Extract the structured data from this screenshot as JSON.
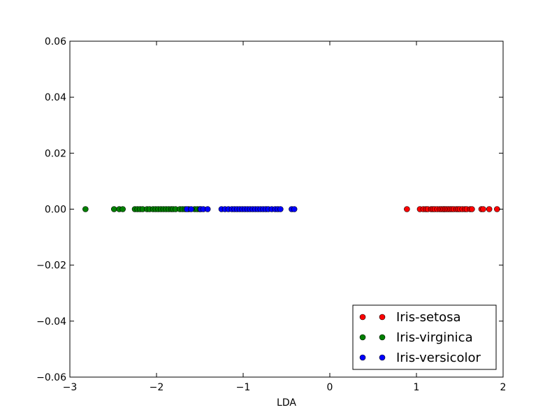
{
  "chart_data": {
    "type": "scatter",
    "title": "",
    "xlabel": "LDA",
    "ylabel": "",
    "xlim": [
      -3,
      2
    ],
    "ylim": [
      -0.06,
      0.06
    ],
    "grid": false,
    "legend_position": "lower-right",
    "x_ticks": [
      {
        "value": -3,
        "label": "−3"
      },
      {
        "value": -2,
        "label": "−2"
      },
      {
        "value": -1,
        "label": "−1"
      },
      {
        "value": 0,
        "label": "0"
      },
      {
        "value": 1,
        "label": "1"
      },
      {
        "value": 2,
        "label": "2"
      }
    ],
    "y_ticks": [
      {
        "value": 0.06,
        "label": "0.06"
      },
      {
        "value": 0.04,
        "label": "0.04"
      },
      {
        "value": 0.02,
        "label": "0.02"
      },
      {
        "value": 0.0,
        "label": "0.00"
      },
      {
        "value": -0.02,
        "label": "−0.02"
      },
      {
        "value": -0.04,
        "label": "−0.04"
      },
      {
        "value": -0.06,
        "label": "−0.06"
      }
    ],
    "series": [
      {
        "name": "Iris-setosa",
        "color": "#ff0000",
        "x": [
          0.89,
          1.04,
          1.08,
          1.11,
          1.13,
          1.17,
          1.19,
          1.21,
          1.24,
          1.27,
          1.29,
          1.31,
          1.33,
          1.35,
          1.37,
          1.39,
          1.41,
          1.43,
          1.46,
          1.48,
          1.5,
          1.53,
          1.56,
          1.58,
          1.62,
          1.64,
          1.75,
          1.77,
          1.84,
          1.93
        ],
        "y": [
          0,
          0,
          0,
          0,
          0,
          0,
          0,
          0,
          0,
          0,
          0,
          0,
          0,
          0,
          0,
          0,
          0,
          0,
          0,
          0,
          0,
          0,
          0,
          0,
          0,
          0,
          0,
          0,
          0,
          0
        ]
      },
      {
        "name": "Iris-virginica",
        "color": "#008000",
        "x": [
          -2.82,
          -2.49,
          -2.43,
          -2.39,
          -2.25,
          -2.22,
          -2.19,
          -2.16,
          -2.11,
          -2.08,
          -2.04,
          -2.01,
          -1.98,
          -1.95,
          -1.92,
          -1.89,
          -1.86,
          -1.83,
          -1.81,
          -1.78,
          -1.73,
          -1.7,
          -1.67,
          -1.63,
          -1.56,
          -1.53,
          -1.5
        ],
        "y": [
          0,
          0,
          0,
          0,
          0,
          0,
          0,
          0,
          0,
          0,
          0,
          0,
          0,
          0,
          0,
          0,
          0,
          0,
          0,
          0,
          0,
          0,
          0,
          0,
          0,
          0,
          0
        ]
      },
      {
        "name": "Iris-versicolor",
        "color": "#0000ff",
        "x": [
          -1.65,
          -1.6,
          -1.49,
          -1.46,
          -1.41,
          -1.25,
          -1.21,
          -1.17,
          -1.13,
          -1.1,
          -1.07,
          -1.04,
          -1.01,
          -0.98,
          -0.95,
          -0.92,
          -0.89,
          -0.86,
          -0.83,
          -0.8,
          -0.77,
          -0.74,
          -0.71,
          -0.67,
          -0.63,
          -0.6,
          -0.57,
          -0.44,
          -0.41
        ],
        "y": [
          0,
          0,
          0,
          0,
          0,
          0,
          0,
          0,
          0,
          0,
          0,
          0,
          0,
          0,
          0,
          0,
          0,
          0,
          0,
          0,
          0,
          0,
          0,
          0,
          0,
          0,
          0,
          0,
          0
        ]
      }
    ]
  }
}
